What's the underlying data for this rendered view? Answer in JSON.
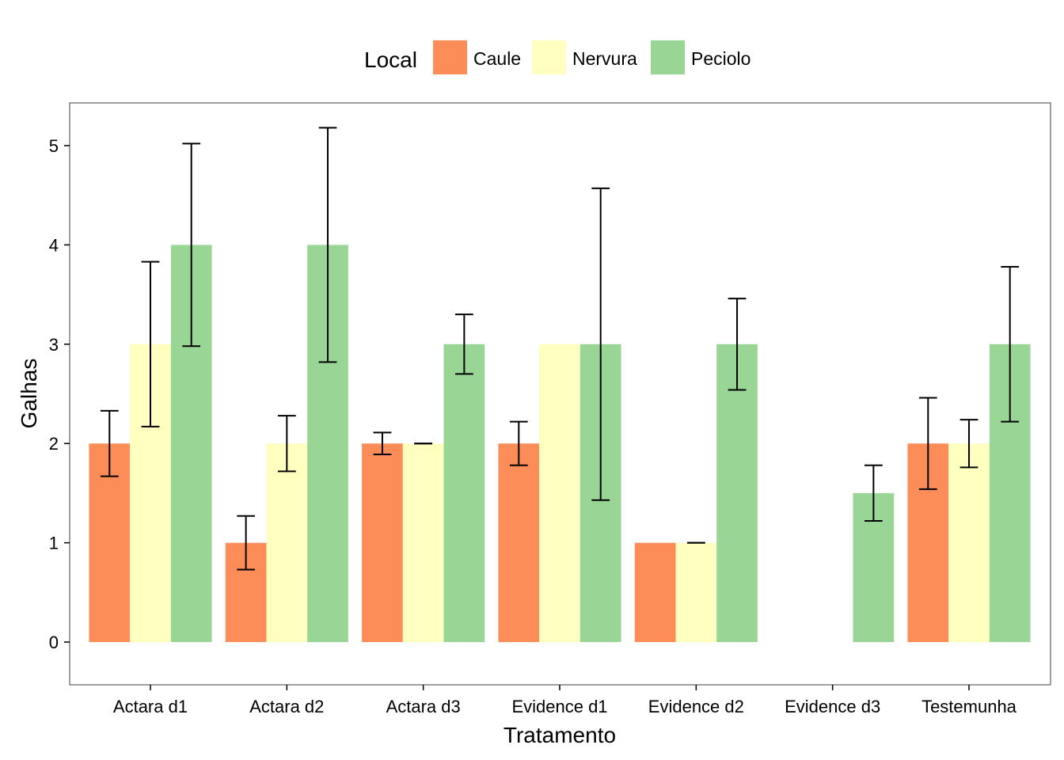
{
  "chart_data": {
    "type": "bar",
    "title": "",
    "xlabel": "Tratamento",
    "ylabel": "Galhas",
    "ylim": [
      -0.43,
      5.43
    ],
    "yticks": [
      0,
      1,
      2,
      3,
      4,
      5
    ],
    "ytick_labels": [
      "0",
      "1",
      "2",
      "3",
      "4",
      "5"
    ],
    "grid": false,
    "legend": {
      "title": "Local",
      "position": "top"
    },
    "categories": [
      "Actara d1",
      "Actara d2",
      "Actara d3",
      "Evidence d1",
      "Evidence d2",
      "Evidence d3",
      "Testemunha"
    ],
    "series": [
      {
        "name": "Caule",
        "color": "#FC8D59",
        "values": [
          2,
          1,
          2,
          2,
          1,
          0,
          2
        ],
        "error": [
          [
            1.67,
            2.33
          ],
          [
            0.73,
            1.27
          ],
          [
            1.89,
            2.11
          ],
          [
            1.78,
            2.22
          ],
          null,
          null,
          [
            1.54,
            2.46
          ]
        ]
      },
      {
        "name": "Nervura",
        "color": "#FFFFBF",
        "values": [
          3,
          2,
          2,
          3,
          1,
          0,
          2
        ],
        "error": [
          [
            2.17,
            3.83
          ],
          [
            1.72,
            2.28
          ],
          [
            2.0,
            2.0
          ],
          null,
          [
            1.0,
            1.0
          ],
          null,
          [
            1.76,
            2.24
          ]
        ]
      },
      {
        "name": "Peciolo",
        "color": "#99D594",
        "values": [
          4,
          4,
          3,
          3,
          3,
          1.5,
          3
        ],
        "error": [
          [
            2.98,
            5.02
          ],
          [
            2.82,
            5.18
          ],
          [
            2.7,
            3.3
          ],
          [
            1.43,
            4.57
          ],
          [
            2.54,
            3.46
          ],
          [
            1.22,
            1.78
          ],
          [
            2.22,
            3.78
          ]
        ]
      }
    ]
  }
}
